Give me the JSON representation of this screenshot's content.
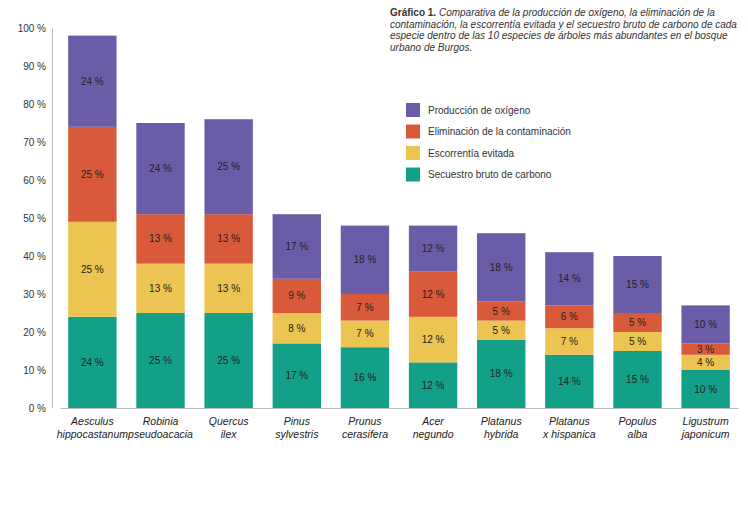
{
  "chart_data": {
    "type": "bar",
    "stacked": true,
    "data_labels": true,
    "title": "Gráfico 1. Comparativa de la producción de oxígeno, la eliminación de la contaminación, la escorrentía evitada y el secuestro bruto de carbono de cada especie dentro de las 10 especies de árboles más abundantes en el bosque urbano de Burgos.",
    "categories": [
      "Aesculus hippocastanum",
      "Robinia pseudoacacia",
      "Quercus ilex",
      "Pinus sylvestris",
      "Prunus cerasifera",
      "Acer negundo",
      "Platanus hybrida",
      "Platanus x hispanica",
      "Populus alba",
      "Ligustrum japonicum"
    ],
    "series": [
      {
        "name": "Secuestro bruto de carbono",
        "color": "#13a089",
        "values": [
          24,
          25,
          25,
          17,
          16,
          12,
          18,
          14,
          15,
          10
        ],
        "value_labels": [
          "24 %",
          "25 %",
          "25 %",
          "17 %",
          "16 %",
          "12 %",
          "18 %",
          "14 %",
          "15 %",
          "10 %"
        ]
      },
      {
        "name": "Escorrentía evitada",
        "color": "#ebc451",
        "values": [
          25,
          13,
          13,
          8,
          7,
          12,
          5,
          7,
          5,
          4
        ],
        "value_labels": [
          "25 %",
          "13 %",
          "13 %",
          "8 %",
          "7 %",
          "12 %",
          "5 %",
          "7 %",
          "5 %",
          "4 %"
        ]
      },
      {
        "name": "Eliminación de la contaminación",
        "color": "#d85a3a",
        "values": [
          25,
          13,
          13,
          9,
          7,
          12,
          5,
          6,
          5,
          3
        ],
        "value_labels": [
          "25 %",
          "13 %",
          "13 %",
          "9 %",
          "7 %",
          "12 %",
          "5 %",
          "6 %",
          "5 %",
          "3 %"
        ]
      },
      {
        "name": "Producción de oxígeno",
        "color": "#6b5ca8",
        "values": [
          24,
          24,
          25,
          17,
          18,
          12,
          18,
          14,
          15,
          10
        ],
        "value_labels": [
          "24 %",
          "24 %",
          "25 %",
          "17 %",
          "18 %",
          "12 %",
          "18 %",
          "14 %",
          "15 %",
          "10 %"
        ]
      }
    ],
    "ylim": [
      0,
      100
    ],
    "yticks": [
      {
        "value": 0,
        "label": "0 %"
      },
      {
        "value": 10,
        "label": "10 %"
      },
      {
        "value": 20,
        "label": "20 %"
      },
      {
        "value": 30,
        "label": "30 %"
      },
      {
        "value": 40,
        "label": "40 %"
      },
      {
        "value": 50,
        "label": "50 %"
      },
      {
        "value": 60,
        "label": "60 %"
      },
      {
        "value": 70,
        "label": "70 %"
      },
      {
        "value": 80,
        "label": "80 %"
      },
      {
        "value": 90,
        "label": "90 %"
      },
      {
        "value": 100,
        "label": "100 %"
      }
    ],
    "legend": "upper right"
  }
}
